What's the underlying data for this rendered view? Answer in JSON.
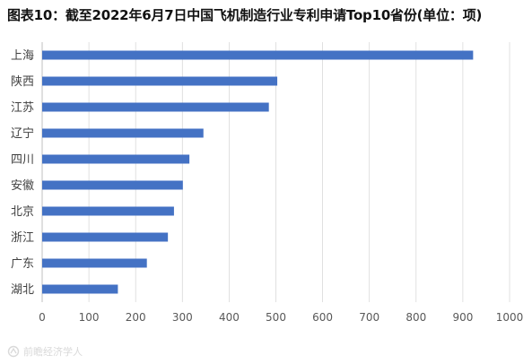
{
  "title": "图表10：截至2022年6月7日中国飞机制造行业专利申请Top10省份(单位：项)",
  "watermark": "前瞻经济学人",
  "colors": {
    "bar": "#4472C4",
    "grid": "#d9d9d9",
    "axis": "#bfbfbf",
    "tick_text": "#595959",
    "category_text": "#404040"
  },
  "chart_data": {
    "type": "bar",
    "orientation": "horizontal",
    "title": "图表10：截至2022年6月7日中国飞机制造行业专利申请Top10省份(单位：项)",
    "categories": [
      "上海",
      "陕西",
      "江苏",
      "辽宁",
      "四川",
      "安徽",
      "北京",
      "浙江",
      "广东",
      "湖北"
    ],
    "values": [
      922,
      503,
      485,
      345,
      315,
      301,
      282,
      269,
      224,
      162
    ],
    "xlabel": "",
    "ylabel": "",
    "xlim": [
      0,
      1000
    ],
    "xticks": [
      0,
      100,
      200,
      300,
      400,
      500,
      600,
      700,
      800,
      900,
      1000
    ],
    "grid": true,
    "legend": "none"
  }
}
